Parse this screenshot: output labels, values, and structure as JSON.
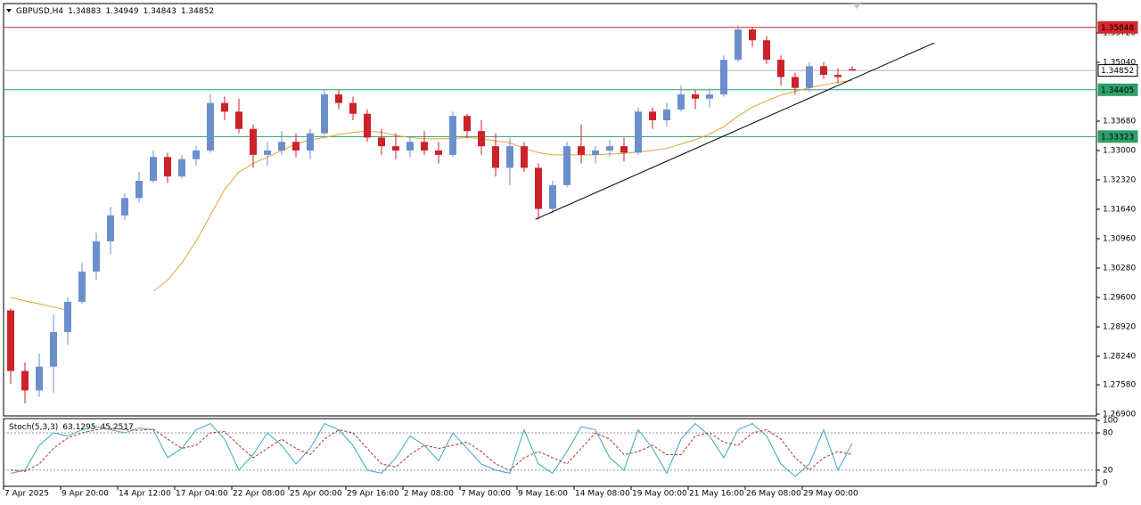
{
  "chart_data": [
    {
      "type": "candlestick",
      "title": "GBPUSD,H4",
      "categories": [
        "7 Apr 2025",
        null,
        null,
        null,
        "9 Apr 20:00",
        null,
        null,
        null,
        "14 Apr 12:00",
        null,
        null,
        null,
        "17 Apr 04:00",
        null,
        null,
        null,
        "22 Apr 08:00",
        null,
        null,
        null,
        "25 Apr 00:00",
        null,
        null,
        null,
        "29 Apr 16:00",
        null,
        null,
        null,
        "2 May 08:00",
        null,
        null,
        null,
        "7 May 00:00",
        null,
        null,
        null,
        "9 May 16:00",
        null,
        null,
        null,
        "14 May 08:00",
        null,
        null,
        null,
        "19 May 00:00",
        null,
        null,
        null,
        "21 May 16:00",
        null,
        null,
        null,
        "26 May 08:00",
        null,
        null,
        null,
        "29 May 00:00",
        null,
        null,
        null
      ],
      "open": [
        1.293,
        1.279,
        1.2745,
        1.28,
        1.288,
        1.295,
        1.302,
        1.309,
        1.315,
        1.319,
        1.323,
        1.3285,
        1.324,
        1.328,
        1.33,
        1.341,
        1.339,
        1.335,
        1.329,
        1.33,
        1.332,
        1.33,
        1.334,
        1.343,
        1.341,
        1.3385,
        1.333,
        1.331,
        1.33,
        1.332,
        1.33,
        1.329,
        1.338,
        1.3345,
        1.331,
        1.326,
        1.331,
        1.326,
        1.3165,
        1.322,
        1.331,
        1.329,
        1.33,
        1.331,
        1.3295,
        1.339,
        1.337,
        1.3395,
        1.343,
        1.342,
        1.343,
        1.351,
        1.358,
        1.3555,
        1.351,
        1.347,
        1.3445,
        1.3495,
        1.3475,
        1.34883
      ],
      "high": [
        1.2935,
        1.281,
        1.283,
        1.292,
        1.296,
        1.304,
        1.311,
        1.317,
        1.32,
        1.325,
        1.33,
        1.3295,
        1.329,
        1.331,
        1.343,
        1.3425,
        1.342,
        1.336,
        1.332,
        1.3345,
        1.334,
        1.335,
        1.344,
        1.344,
        1.3425,
        1.3395,
        1.335,
        1.334,
        1.333,
        1.3345,
        1.332,
        1.339,
        1.3385,
        1.337,
        1.334,
        1.333,
        1.332,
        1.327,
        1.323,
        1.332,
        1.336,
        1.331,
        1.3325,
        1.333,
        1.34,
        1.34,
        1.341,
        1.345,
        1.344,
        1.3445,
        1.352,
        1.359,
        1.3585,
        1.3565,
        1.352,
        1.348,
        1.3505,
        1.3505,
        1.349,
        1.34949
      ],
      "low": [
        1.276,
        1.2715,
        1.273,
        1.274,
        1.285,
        1.2945,
        1.3,
        1.306,
        1.314,
        1.318,
        1.3225,
        1.3225,
        1.3235,
        1.3265,
        1.3295,
        1.337,
        1.334,
        1.326,
        1.3265,
        1.329,
        1.3285,
        1.328,
        1.3335,
        1.3395,
        1.337,
        1.332,
        1.329,
        1.328,
        1.3285,
        1.329,
        1.327,
        1.3285,
        1.333,
        1.329,
        1.324,
        1.322,
        1.325,
        1.314,
        1.3155,
        1.3215,
        1.327,
        1.327,
        1.3285,
        1.3275,
        1.329,
        1.335,
        1.3355,
        1.339,
        1.3395,
        1.34,
        1.3425,
        1.3505,
        1.354,
        1.35,
        1.345,
        1.343,
        1.3435,
        1.3465,
        1.3455,
        1.34843
      ],
      "close": [
        1.279,
        1.2745,
        1.28,
        1.288,
        1.295,
        1.302,
        1.309,
        1.315,
        1.319,
        1.323,
        1.3285,
        1.324,
        1.328,
        1.33,
        1.341,
        1.339,
        1.335,
        1.329,
        1.33,
        1.332,
        1.33,
        1.334,
        1.343,
        1.341,
        1.3385,
        1.333,
        1.331,
        1.33,
        1.332,
        1.33,
        1.329,
        1.338,
        1.3345,
        1.331,
        1.326,
        1.331,
        1.326,
        1.3165,
        1.322,
        1.331,
        1.329,
        1.33,
        1.331,
        1.3295,
        1.339,
        1.337,
        1.3395,
        1.343,
        1.342,
        1.343,
        1.351,
        1.358,
        1.3555,
        1.351,
        1.347,
        1.3445,
        1.3495,
        1.3475,
        1.347,
        1.34852
      ],
      "up_color": "#6b8fcc",
      "down_color": "#cc2229",
      "ylim": [
        1.2686,
        1.3607
      ],
      "yticks": [
        {
          "value": 1.269,
          "label": "1.26900"
        },
        {
          "value": 1.2758,
          "label": "1.27580"
        },
        {
          "value": 1.2824,
          "label": "1.28240"
        },
        {
          "value": 1.2892,
          "label": "1.28920"
        },
        {
          "value": 1.296,
          "label": "1.29600"
        },
        {
          "value": 1.3028,
          "label": "1.30280"
        },
        {
          "value": 1.3096,
          "label": "1.30960"
        },
        {
          "value": 1.3164,
          "label": "1.31640"
        },
        {
          "value": 1.3232,
          "label": "1.32320"
        },
        {
          "value": 1.33,
          "label": "1.33000"
        },
        {
          "value": 1.3368,
          "label": "1.33680"
        },
        {
          "value": 1.3504,
          "label": "1.35040"
        },
        {
          "value": 1.3572,
          "label": "1.35720"
        }
      ],
      "levels": [
        {
          "value": 1.35848,
          "color": "#c8282d",
          "label_bg": "#d9262b",
          "label_fg": "#ffffff"
        },
        {
          "value": 1.34852,
          "color": "#b0b0b0",
          "label_bg": "#ffffff",
          "label_fg": "#000000"
        },
        {
          "value": 1.34405,
          "color": "#2e9e6a",
          "label_bg": "#2e9e6a",
          "label_fg": "#ffffff"
        },
        {
          "value": 1.33323,
          "color": "#2e9e6a",
          "label_bg": "#2e9e6a",
          "label_fg": "#ffffff"
        }
      ],
      "moving_average": {
        "color": "#e3a33a",
        "values": [
          1.296,
          1.2952,
          1.2945,
          1.2938,
          1.293,
          null,
          null,
          null,
          null,
          null,
          1.2975,
          1.3,
          1.304,
          1.309,
          1.315,
          1.321,
          1.325,
          1.327,
          1.3285,
          1.33,
          1.3315,
          1.3325,
          1.333,
          1.3337,
          1.3342,
          1.3345,
          1.3342,
          1.3335,
          1.333,
          1.3327,
          1.3327,
          1.3328,
          1.333,
          1.3328,
          1.3322,
          1.3318,
          1.3305,
          1.3295,
          1.329,
          1.329,
          1.329,
          1.329,
          1.3292,
          1.3293,
          1.3297,
          1.33,
          1.3305,
          1.3315,
          1.3325,
          1.3338,
          1.3355,
          1.338,
          1.34,
          1.3415,
          1.3428,
          1.3437,
          1.3445,
          1.3452,
          1.3458,
          1.3462
        ]
      },
      "trendline": {
        "color": "#000000",
        "x": [
          36.8,
          64.75
        ],
        "y": [
          1.3141,
          1.3549
        ]
      }
    },
    {
      "type": "line",
      "title": "Stoch(5,3,3)",
      "series": [
        {
          "color": "#3aa9bf",
          "dashed": false,
          "values": [
            15,
            20,
            60,
            80,
            75,
            85,
            90,
            85,
            80,
            88,
            85,
            40,
            55,
            85,
            95,
            70,
            20,
            45,
            80,
            60,
            30,
            55,
            95,
            85,
            60,
            20,
            15,
            40,
            75,
            60,
            35,
            80,
            55,
            30,
            20,
            15,
            85,
            30,
            15,
            50,
            90,
            85,
            40,
            20,
            85,
            55,
            15,
            70,
            95,
            75,
            40,
            85,
            95,
            75,
            30,
            10,
            30,
            85,
            20,
            63.1295
          ]
        },
        {
          "color": "#b03030",
          "dashed": true,
          "values": [
            20,
            18,
            30,
            55,
            72,
            80,
            85,
            88,
            85,
            84,
            86,
            70,
            55,
            60,
            80,
            82,
            60,
            40,
            55,
            70,
            55,
            45,
            70,
            85,
            80,
            55,
            30,
            25,
            45,
            60,
            55,
            60,
            65,
            50,
            30,
            20,
            40,
            50,
            40,
            30,
            55,
            80,
            70,
            45,
            50,
            60,
            45,
            45,
            75,
            80,
            65,
            60,
            80,
            85,
            70,
            40,
            20,
            40,
            50,
            45.2517
          ]
        }
      ],
      "ylim": [
        -6,
        103
      ],
      "yticks": [
        100,
        80,
        20,
        0
      ],
      "levels": [
        80,
        20
      ]
    }
  ]
}
